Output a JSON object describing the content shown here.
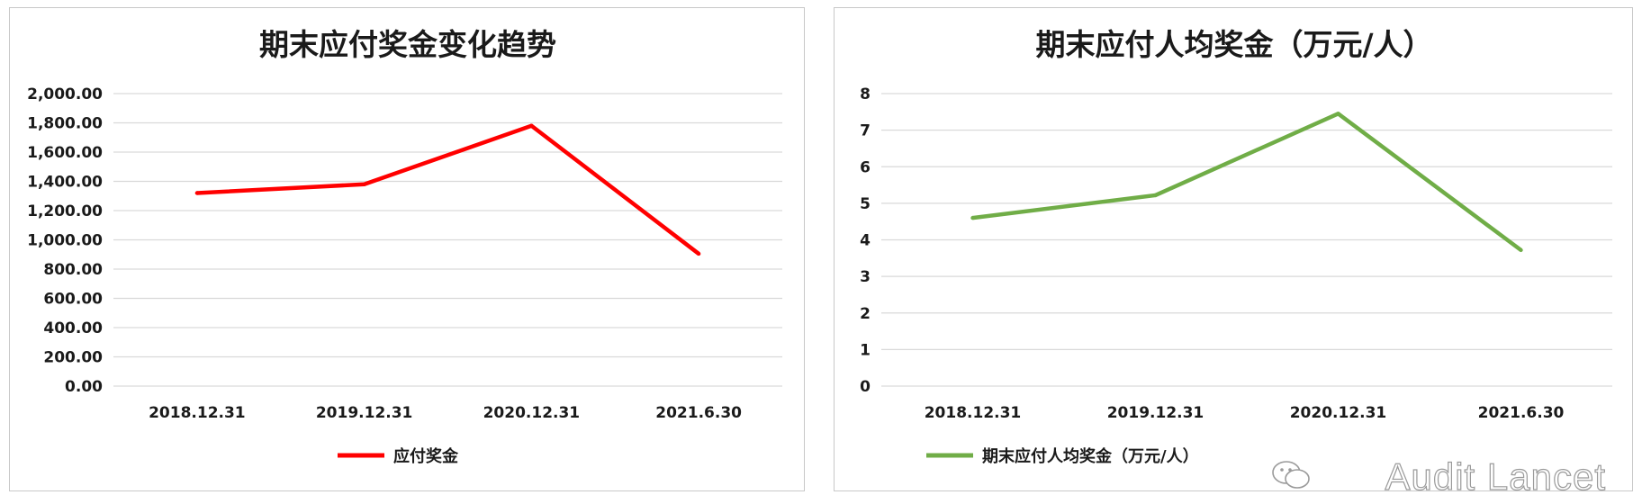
{
  "chart_data": [
    {
      "type": "line",
      "title": "期末应付奖金变化趋势",
      "categories": [
        "2018.12.31",
        "2019.12.31",
        "2020.12.31",
        "2021.6.30"
      ],
      "series": [
        {
          "name": "应付奖金",
          "color": "#ff0000",
          "values": [
            1320,
            1380,
            1780,
            905
          ]
        }
      ],
      "ylim": [
        0,
        2000
      ],
      "yticks": [
        "0.00",
        "200.00",
        "400.00",
        "600.00",
        "800.00",
        "1,000.00",
        "1,200.00",
        "1,400.00",
        "1,600.00",
        "1,800.00",
        "2,000.00"
      ],
      "grid": true,
      "legend": "bottom"
    },
    {
      "type": "line",
      "title": "期末应付人均奖金（万元/人）",
      "categories": [
        "2018.12.31",
        "2019.12.31",
        "2020.12.31",
        "2021.6.30"
      ],
      "series": [
        {
          "name": "期末应付人均奖金（万元/人）",
          "color": "#70ad47",
          "values": [
            4.6,
            5.22,
            7.45,
            3.72
          ]
        }
      ],
      "ylim": [
        0,
        8
      ],
      "yticks": [
        "0",
        "1",
        "2",
        "3",
        "4",
        "5",
        "6",
        "7",
        "8"
      ],
      "grid": true,
      "legend": "bottom"
    }
  ],
  "watermark": {
    "text": "Audit Lancet",
    "icon": "wechat-icon"
  }
}
